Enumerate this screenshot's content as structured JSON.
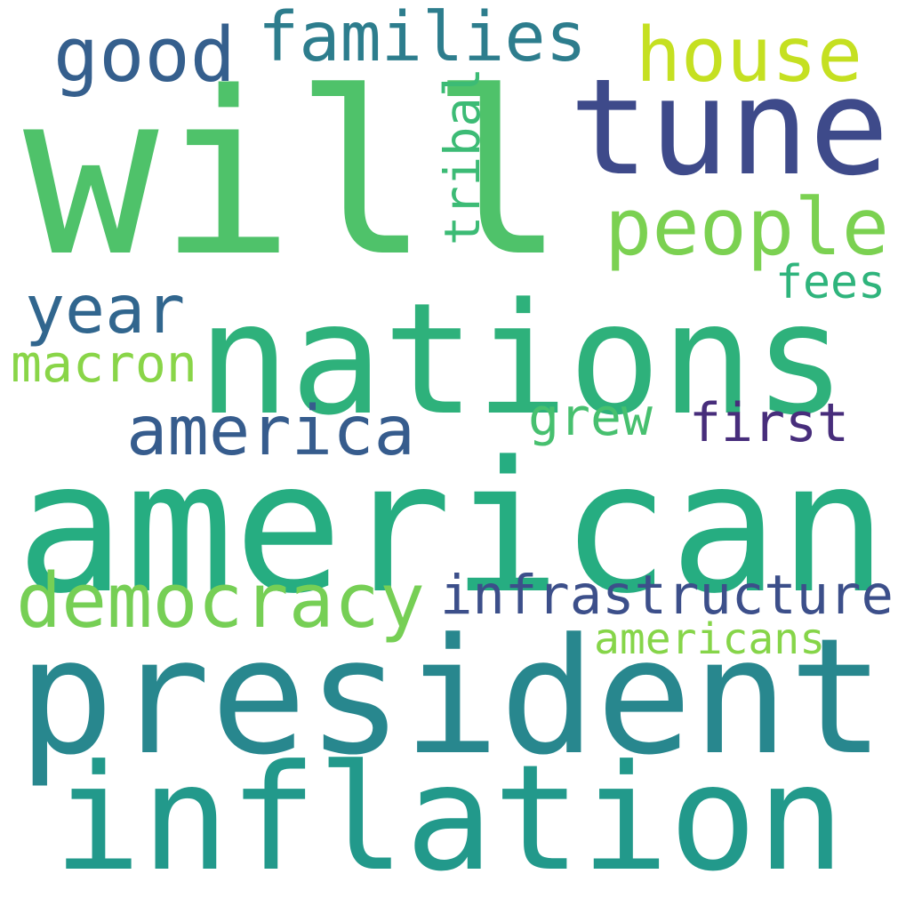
{
  "words": [
    {
      "key": "will",
      "text": "will",
      "color": "#4fc26a"
    },
    {
      "key": "american",
      "text": "american",
      "color": "#26ad81"
    },
    {
      "key": "president",
      "text": "president",
      "color": "#28878e"
    },
    {
      "key": "nations",
      "text": "nations",
      "color": "#2eb17b"
    },
    {
      "key": "inflation",
      "text": "inflation",
      "color": "#22998b"
    },
    {
      "key": "tune",
      "text": "tune",
      "color": "#3e4a8a"
    },
    {
      "key": "democracy",
      "text": "democracy",
      "color": "#76cf55"
    },
    {
      "key": "people",
      "text": "people",
      "color": "#7bd151"
    },
    {
      "key": "house",
      "text": "house",
      "color": "#c5e021"
    },
    {
      "key": "good",
      "text": "good",
      "color": "#355f8d"
    },
    {
      "key": "families",
      "text": "families",
      "color": "#2d7d8d"
    },
    {
      "key": "infrastructure",
      "text": "infrastructure",
      "color": "#3c4f8a"
    },
    {
      "key": "america",
      "text": "america",
      "color": "#365c8d"
    },
    {
      "key": "year",
      "text": "year",
      "color": "#31668e"
    },
    {
      "key": "macron",
      "text": "macron",
      "color": "#89d548"
    },
    {
      "key": "tribal",
      "text": "tribal",
      "color": "#3cbb75"
    },
    {
      "key": "grew",
      "text": "grew",
      "color": "#47c06f"
    },
    {
      "key": "first",
      "text": "first",
      "color": "#472d7b"
    },
    {
      "key": "americans",
      "text": "americans",
      "color": "#86d549"
    },
    {
      "key": "fees",
      "text": "fees",
      "color": "#2fb47c"
    }
  ]
}
